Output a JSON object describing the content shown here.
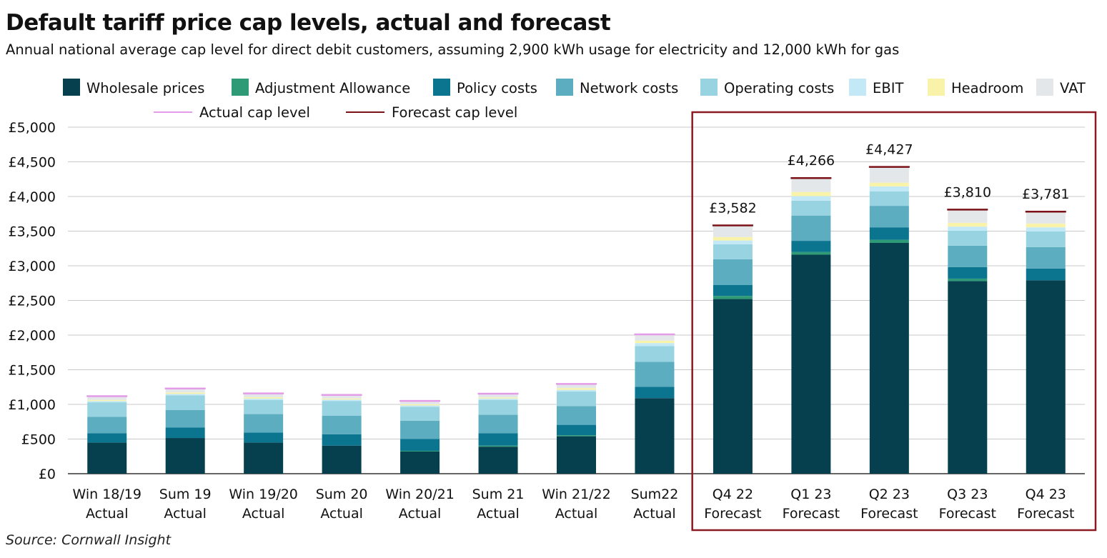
{
  "chart_data": {
    "type": "bar",
    "stacked": true,
    "title": "Default tariff price cap levels, actual and forecast",
    "subtitle": "Annual national average cap level for direct debit customers, assuming 2,900 kWh usage for electricity and 12,000 kWh for gas",
    "source": "Source: Cornwall Insight",
    "xlabel": "",
    "ylabel": "",
    "ylim": [
      0,
      5000
    ],
    "yticks": [
      0,
      500,
      1000,
      1500,
      2000,
      2500,
      3000,
      3500,
      4000,
      4500,
      5000
    ],
    "ytick_labels": [
      "£0",
      "£500",
      "£1,000",
      "£1,500",
      "£2,000",
      "£2,500",
      "£3,000",
      "£3,500",
      "£4,000",
      "£4,500",
      "£5,000"
    ],
    "grid": true,
    "legend_position": "top",
    "categories": [
      [
        "Win 18/19",
        "Actual"
      ],
      [
        "Sum 19",
        "Actual"
      ],
      [
        "Win 19/20",
        "Actual"
      ],
      [
        "Sum 20",
        "Actual"
      ],
      [
        "Win 20/21",
        "Actual"
      ],
      [
        "Sum 21",
        "Actual"
      ],
      [
        "Win 21/22",
        "Actual"
      ],
      [
        "Sum22",
        "Actual"
      ],
      [
        "Q4 22",
        "Forecast"
      ],
      [
        "Q1 23",
        "Forecast"
      ],
      [
        "Q2 23",
        "Forecast"
      ],
      [
        "Q3 23",
        "Forecast"
      ],
      [
        "Q4 23",
        "Forecast"
      ]
    ],
    "series": [
      {
        "name": "Wholesale prices",
        "color": "#06404f",
        "values": [
          450,
          515,
          450,
          405,
          320,
          390,
          540,
          1090,
          2520,
          3160,
          3330,
          2780,
          2790
        ]
      },
      {
        "name": "Adjustment Allowance",
        "color": "#2e9a76",
        "values": [
          0,
          0,
          0,
          0,
          10,
          15,
          15,
          0,
          45,
          40,
          45,
          35,
          0
        ]
      },
      {
        "name": "Policy costs",
        "color": "#0b7590",
        "values": [
          135,
          150,
          145,
          165,
          170,
          180,
          150,
          165,
          160,
          160,
          180,
          165,
          170
        ]
      },
      {
        "name": "Network costs",
        "color": "#5cadc0",
        "values": [
          235,
          255,
          265,
          265,
          265,
          265,
          270,
          360,
          370,
          365,
          310,
          310,
          310
        ]
      },
      {
        "name": "Operating costs",
        "color": "#98d3e1",
        "values": [
          210,
          210,
          205,
          215,
          200,
          215,
          210,
          225,
          215,
          215,
          210,
          215,
          225
        ]
      },
      {
        "name": "EBIT",
        "color": "#c4e9f6",
        "values": [
          20,
          22,
          20,
          20,
          20,
          20,
          25,
          45,
          55,
          65,
          70,
          60,
          60
        ]
      },
      {
        "name": "Headroom",
        "color": "#f8f3a8",
        "values": [
          15,
          20,
          18,
          15,
          15,
          15,
          25,
          35,
          50,
          60,
          55,
          55,
          55
        ]
      },
      {
        "name": "VAT",
        "color": "#e4e7e9",
        "values": [
          53,
          58,
          55,
          52,
          50,
          55,
          60,
          90,
          167,
          201,
          227,
          190,
          171
        ]
      }
    ],
    "line_series": [
      {
        "name": "Actual cap level",
        "color": "#e49be8",
        "values": [
          1118,
          1230,
          1158,
          1137,
          1050,
          1155,
          1295,
          2010,
          null,
          null,
          null,
          null,
          null
        ]
      },
      {
        "name": "Forecast cap level",
        "color": "#7a1218",
        "values": [
          null,
          null,
          null,
          null,
          null,
          null,
          null,
          null,
          3582,
          4266,
          4427,
          3810,
          3781
        ]
      }
    ],
    "totals_labels": [
      "",
      "",
      "",
      "",
      "",
      "",
      "",
      "",
      "£3,582",
      "£4,266",
      "£4,427",
      "£3,810",
      "£3,781"
    ],
    "highlight": {
      "label": "forecast-period",
      "color": "#8b1a22",
      "from_index": 8,
      "to_index": 12
    }
  }
}
